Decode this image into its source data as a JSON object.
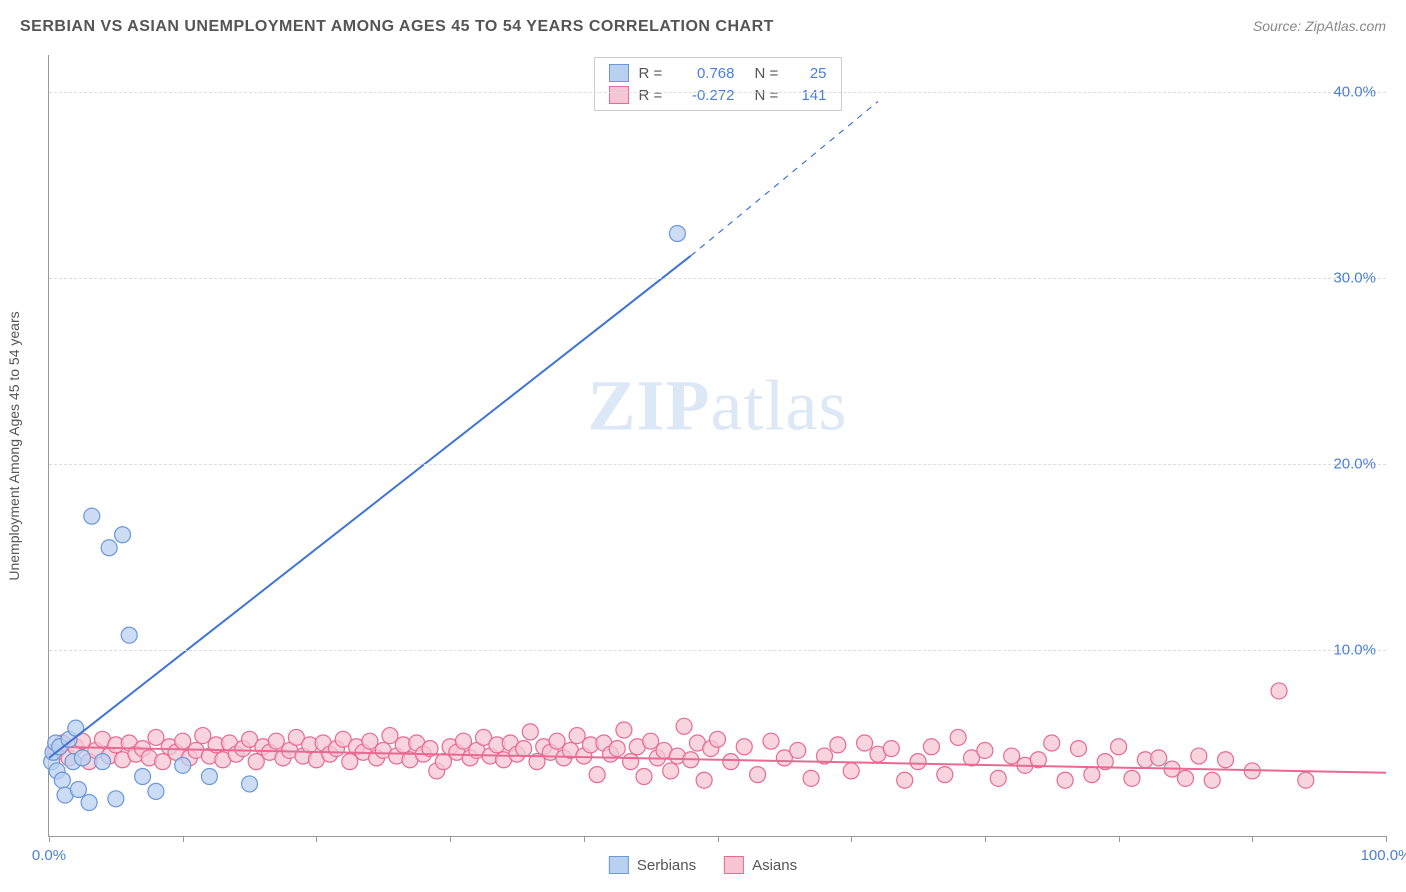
{
  "title": "SERBIAN VS ASIAN UNEMPLOYMENT AMONG AGES 45 TO 54 YEARS CORRELATION CHART",
  "source": "Source: ZipAtlas.com",
  "y_axis_title": "Unemployment Among Ages 45 to 54 years",
  "watermark": {
    "zip": "ZIP",
    "atlas": "atlas"
  },
  "chart": {
    "type": "scatter",
    "xlim": [
      0,
      100
    ],
    "ylim": [
      0,
      42
    ],
    "x_ticks": [
      0,
      10,
      20,
      30,
      40,
      50,
      60,
      70,
      80,
      90,
      100
    ],
    "y_grid": [
      10,
      20,
      30,
      40
    ],
    "y_tick_labels": [
      {
        "v": 10,
        "t": "10.0%"
      },
      {
        "v": 20,
        "t": "20.0%"
      },
      {
        "v": 30,
        "t": "30.0%"
      },
      {
        "v": 40,
        "t": "40.0%"
      }
    ],
    "x_tick_labels": [
      {
        "v": 0,
        "t": "0.0%"
      },
      {
        "v": 100,
        "t": "100.0%"
      }
    ],
    "background_color": "#ffffff",
    "grid_color": "#dddddd",
    "axis_color": "#999999",
    "label_color": "#4a7fd8",
    "marker_radius": 8,
    "marker_stroke_width": 1.2,
    "line_width": 2
  },
  "series": {
    "serbians": {
      "label": "Serbians",
      "fill": "#b9d0f0",
      "stroke": "#6a98d8",
      "line_color": "#3f73d6",
      "R": "0.768",
      "N": "25",
      "trend": {
        "x1": 0,
        "y1": 4.2,
        "x2": 48,
        "y2": 31.2,
        "dash_x2": 62,
        "dash_y2": 39.5
      },
      "points": [
        [
          0.2,
          4.0
        ],
        [
          0.3,
          4.5
        ],
        [
          0.5,
          5.0
        ],
        [
          0.6,
          3.5
        ],
        [
          0.8,
          4.8
        ],
        [
          1.0,
          3.0
        ],
        [
          1.2,
          2.2
        ],
        [
          1.5,
          5.2
        ],
        [
          1.8,
          4.0
        ],
        [
          2.0,
          5.8
        ],
        [
          2.2,
          2.5
        ],
        [
          2.5,
          4.2
        ],
        [
          3.0,
          1.8
        ],
        [
          3.2,
          17.2
        ],
        [
          4.0,
          4.0
        ],
        [
          4.5,
          15.5
        ],
        [
          5.0,
          2.0
        ],
        [
          5.5,
          16.2
        ],
        [
          6.0,
          10.8
        ],
        [
          7.0,
          3.2
        ],
        [
          8.0,
          2.4
        ],
        [
          10.0,
          3.8
        ],
        [
          12.0,
          3.2
        ],
        [
          15.0,
          2.8
        ],
        [
          47.0,
          32.4
        ]
      ]
    },
    "asians": {
      "label": "Asians",
      "fill": "#f6c5d4",
      "stroke": "#e86a92",
      "line_color": "#e86a92",
      "R": "-0.272",
      "N": "141",
      "trend": {
        "x1": 0,
        "y1": 4.8,
        "x2": 100,
        "y2": 3.4
      },
      "points": [
        [
          0.5,
          4.5
        ],
        [
          1.0,
          5.0
        ],
        [
          1.5,
          4.2
        ],
        [
          2.0,
          4.8
        ],
        [
          2.5,
          5.1
        ],
        [
          3.0,
          4.0
        ],
        [
          3.5,
          4.6
        ],
        [
          4.0,
          5.2
        ],
        [
          4.5,
          4.3
        ],
        [
          5.0,
          4.9
        ],
        [
          5.5,
          4.1
        ],
        [
          6.0,
          5.0
        ],
        [
          6.5,
          4.4
        ],
        [
          7.0,
          4.7
        ],
        [
          7.5,
          4.2
        ],
        [
          8.0,
          5.3
        ],
        [
          8.5,
          4.0
        ],
        [
          9.0,
          4.8
        ],
        [
          9.5,
          4.5
        ],
        [
          10.0,
          5.1
        ],
        [
          10.5,
          4.2
        ],
        [
          11.0,
          4.6
        ],
        [
          11.5,
          5.4
        ],
        [
          12.0,
          4.3
        ],
        [
          12.5,
          4.9
        ],
        [
          13.0,
          4.1
        ],
        [
          13.5,
          5.0
        ],
        [
          14.0,
          4.4
        ],
        [
          14.5,
          4.7
        ],
        [
          15.0,
          5.2
        ],
        [
          15.5,
          4.0
        ],
        [
          16.0,
          4.8
        ],
        [
          16.5,
          4.5
        ],
        [
          17.0,
          5.1
        ],
        [
          17.5,
          4.2
        ],
        [
          18.0,
          4.6
        ],
        [
          18.5,
          5.3
        ],
        [
          19.0,
          4.3
        ],
        [
          19.5,
          4.9
        ],
        [
          20.0,
          4.1
        ],
        [
          20.5,
          5.0
        ],
        [
          21.0,
          4.4
        ],
        [
          21.5,
          4.7
        ],
        [
          22.0,
          5.2
        ],
        [
          22.5,
          4.0
        ],
        [
          23.0,
          4.8
        ],
        [
          23.5,
          4.5
        ],
        [
          24.0,
          5.1
        ],
        [
          24.5,
          4.2
        ],
        [
          25.0,
          4.6
        ],
        [
          25.5,
          5.4
        ],
        [
          26.0,
          4.3
        ],
        [
          26.5,
          4.9
        ],
        [
          27.0,
          4.1
        ],
        [
          27.5,
          5.0
        ],
        [
          28.0,
          4.4
        ],
        [
          28.5,
          4.7
        ],
        [
          29.0,
          3.5
        ],
        [
          29.5,
          4.0
        ],
        [
          30.0,
          4.8
        ],
        [
          30.5,
          4.5
        ],
        [
          31.0,
          5.1
        ],
        [
          31.5,
          4.2
        ],
        [
          32.0,
          4.6
        ],
        [
          32.5,
          5.3
        ],
        [
          33.0,
          4.3
        ],
        [
          33.5,
          4.9
        ],
        [
          34.0,
          4.1
        ],
        [
          34.5,
          5.0
        ],
        [
          35.0,
          4.4
        ],
        [
          35.5,
          4.7
        ],
        [
          36.0,
          5.6
        ],
        [
          36.5,
          4.0
        ],
        [
          37.0,
          4.8
        ],
        [
          37.5,
          4.5
        ],
        [
          38.0,
          5.1
        ],
        [
          38.5,
          4.2
        ],
        [
          39.0,
          4.6
        ],
        [
          39.5,
          5.4
        ],
        [
          40.0,
          4.3
        ],
        [
          40.5,
          4.9
        ],
        [
          41.0,
          3.3
        ],
        [
          41.5,
          5.0
        ],
        [
          42.0,
          4.4
        ],
        [
          42.5,
          4.7
        ],
        [
          43.0,
          5.7
        ],
        [
          43.5,
          4.0
        ],
        [
          44.0,
          4.8
        ],
        [
          44.5,
          3.2
        ],
        [
          45.0,
          5.1
        ],
        [
          45.5,
          4.2
        ],
        [
          46.0,
          4.6
        ],
        [
          46.5,
          3.5
        ],
        [
          47.0,
          4.3
        ],
        [
          47.5,
          5.9
        ],
        [
          48.0,
          4.1
        ],
        [
          48.5,
          5.0
        ],
        [
          49.0,
          3.0
        ],
        [
          49.5,
          4.7
        ],
        [
          50.0,
          5.2
        ],
        [
          51.0,
          4.0
        ],
        [
          52.0,
          4.8
        ],
        [
          53.0,
          3.3
        ],
        [
          54.0,
          5.1
        ],
        [
          55.0,
          4.2
        ],
        [
          56.0,
          4.6
        ],
        [
          57.0,
          3.1
        ],
        [
          58.0,
          4.3
        ],
        [
          59.0,
          4.9
        ],
        [
          60.0,
          3.5
        ],
        [
          61.0,
          5.0
        ],
        [
          62.0,
          4.4
        ],
        [
          63.0,
          4.7
        ],
        [
          64.0,
          3.0
        ],
        [
          65.0,
          4.0
        ],
        [
          66.0,
          4.8
        ],
        [
          67.0,
          3.3
        ],
        [
          68.0,
          5.3
        ],
        [
          69.0,
          4.2
        ],
        [
          70.0,
          4.6
        ],
        [
          71.0,
          3.1
        ],
        [
          72.0,
          4.3
        ],
        [
          73.0,
          3.8
        ],
        [
          74.0,
          4.1
        ],
        [
          75.0,
          5.0
        ],
        [
          76.0,
          3.0
        ],
        [
          77.0,
          4.7
        ],
        [
          78.0,
          3.3
        ],
        [
          79.0,
          4.0
        ],
        [
          80.0,
          4.8
        ],
        [
          81.0,
          3.1
        ],
        [
          82.0,
          4.1
        ],
        [
          83.0,
          4.2
        ],
        [
          84.0,
          3.6
        ],
        [
          85.0,
          3.1
        ],
        [
          86.0,
          4.3
        ],
        [
          87.0,
          3.0
        ],
        [
          88.0,
          4.1
        ],
        [
          90.0,
          3.5
        ],
        [
          92.0,
          7.8
        ],
        [
          94.0,
          3.0
        ]
      ]
    }
  }
}
